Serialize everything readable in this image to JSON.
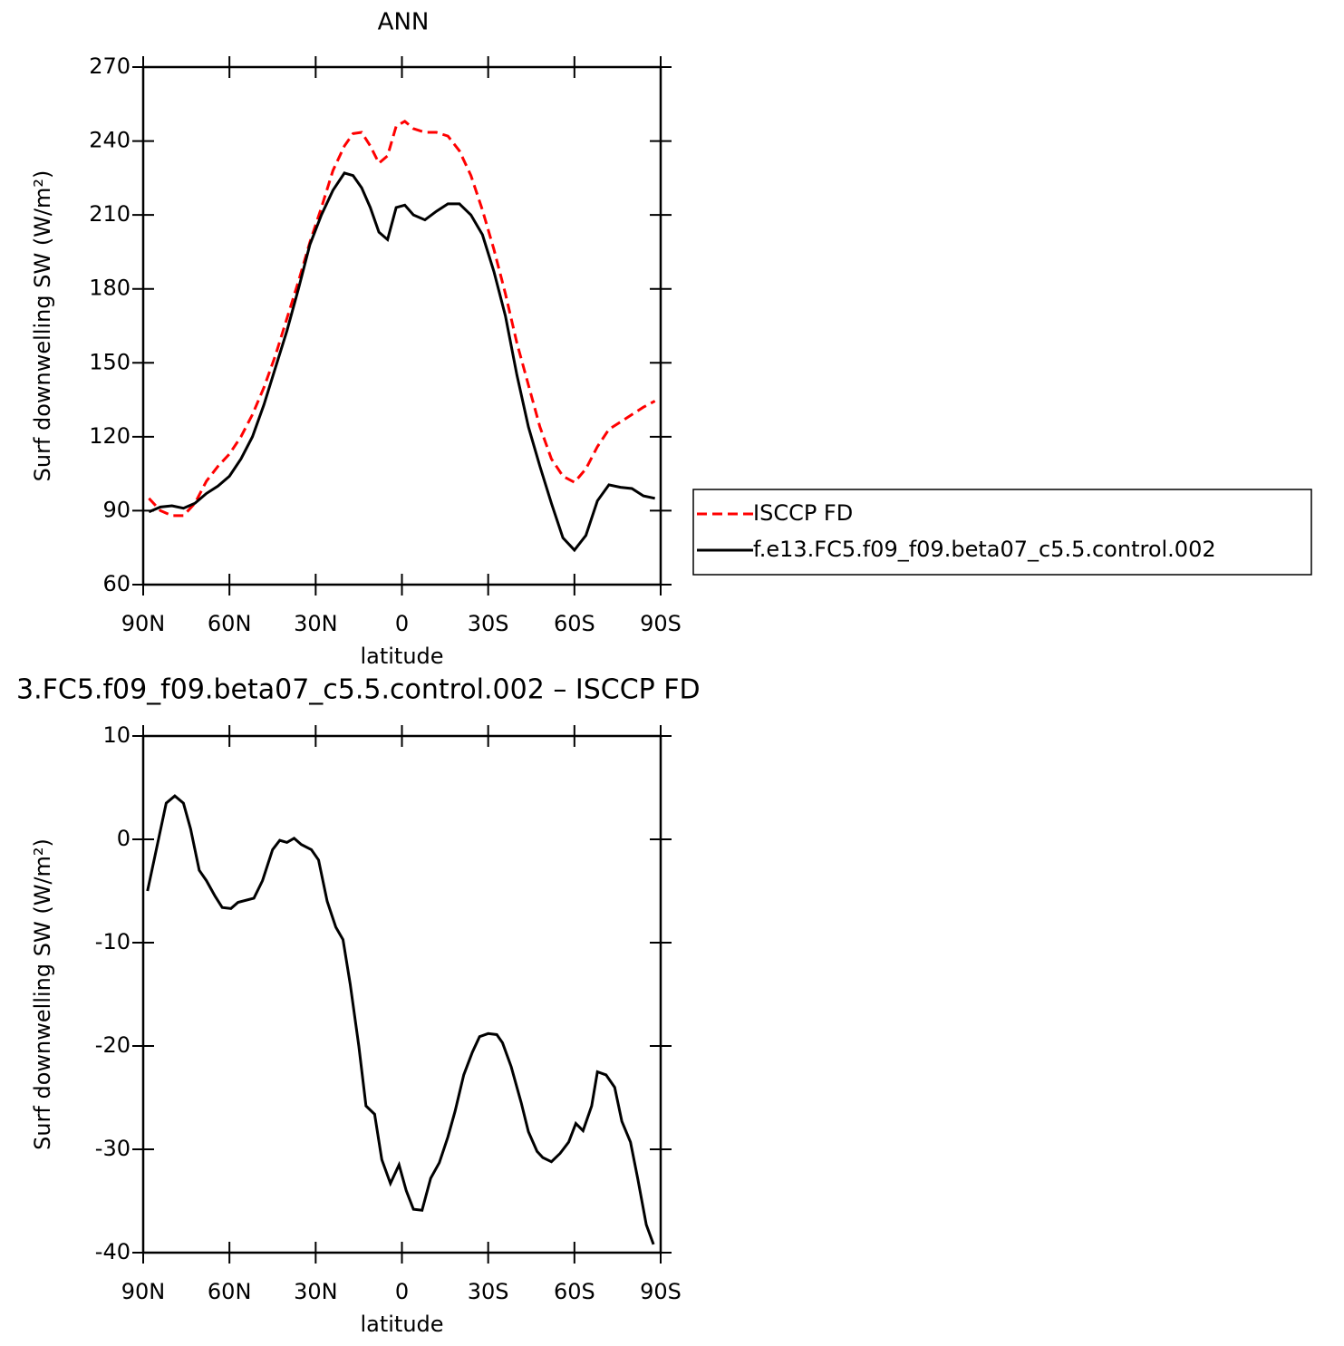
{
  "chart_data": [
    {
      "type": "line",
      "title": "ANN",
      "xlabel": "latitude",
      "ylabel": "Surf downwelling SW (W/m²)",
      "x": [
        88,
        84,
        80,
        76,
        72,
        68,
        64,
        60,
        56,
        52,
        48,
        44,
        40,
        36,
        32,
        28,
        24,
        20,
        17,
        14,
        11,
        8,
        5,
        2,
        -1,
        -4,
        -8,
        -12,
        -16,
        -20,
        -24,
        -28,
        -32,
        -36,
        -40,
        -44,
        -48,
        -52,
        -56,
        -60,
        -64,
        -68,
        -72,
        -76,
        -80,
        -84,
        -88
      ],
      "series": [
        {
          "name": "ISCCP FD",
          "color": "#ff0000",
          "linestyle": "dashed",
          "values": [
            95,
            90,
            88,
            88,
            93,
            102,
            108,
            113,
            120,
            129,
            140,
            153,
            168,
            183,
            199,
            213,
            228,
            238,
            243,
            243.5,
            238,
            231,
            234,
            246,
            248,
            245,
            243.5,
            243.5,
            242,
            236,
            226,
            212,
            196,
            178,
            158,
            141,
            124,
            111,
            104,
            101.5,
            107,
            116,
            123,
            126,
            129,
            132,
            134.5
          ]
        },
        {
          "name": "f.e13.FC5.f09_f09.beta07_c5.5.control.002",
          "color": "#000000",
          "linestyle": "solid",
          "values": [
            89.5,
            91.5,
            92,
            91,
            93,
            97,
            100,
            104,
            111,
            120,
            133,
            148,
            163,
            180,
            198,
            210,
            220,
            227,
            226,
            221,
            213,
            203,
            200,
            213,
            214,
            210,
            208,
            211.5,
            214.5,
            214.5,
            210,
            202,
            187,
            169,
            145,
            124,
            108,
            93,
            79,
            74,
            80,
            94,
            100.5,
            99.5,
            99,
            96,
            95
          ]
        }
      ],
      "xlim": [
        90,
        -90
      ],
      "xticks": [
        {
          "value": 90,
          "label": "90N"
        },
        {
          "value": 60,
          "label": "60N"
        },
        {
          "value": 30,
          "label": "30N"
        },
        0,
        {
          "value": -30,
          "label": "30S"
        },
        {
          "value": -60,
          "label": "60S"
        },
        {
          "value": -90,
          "label": "90S"
        }
      ],
      "ylim": [
        60,
        270
      ],
      "yticks": [
        60,
        90,
        120,
        150,
        180,
        210,
        240,
        270
      ],
      "legend": "right"
    },
    {
      "type": "line",
      "title": "3.FC5.f09_f09.beta07_c5.5.control.002 – ISCCP FD",
      "xlabel": "latitude",
      "ylabel": "Surf downwelling SW (W/m²)",
      "x": [
        88.5,
        82,
        79,
        76,
        73.5,
        70.5,
        68,
        65,
        62.5,
        59.5,
        57,
        51.5,
        48.5,
        45,
        42.5,
        40,
        37.5,
        35,
        31.5,
        29,
        26,
        23,
        20.5,
        18,
        15,
        12.5,
        9.5,
        7,
        4,
        1,
        -1.5,
        -4,
        -7,
        -10,
        -13,
        -16,
        -18.5,
        -21.5,
        -24.5,
        -27,
        -30,
        -33,
        -35,
        -38,
        -41.5,
        -44,
        -47,
        -49,
        -52,
        -55,
        -58,
        -60.5,
        -63,
        -66,
        -68,
        -71,
        -74,
        -76.5,
        -79.5,
        -82,
        -85,
        -87.5
      ],
      "series": [
        {
          "color": "#000000",
          "linestyle": "solid",
          "values": [
            -5,
            3.5,
            4.2,
            3.5,
            1,
            -3,
            -4,
            -5.5,
            -6.6,
            -6.7,
            -6.1,
            -5.7,
            -4,
            -1,
            -0.1,
            -0.3,
            0.1,
            -0.5,
            -1,
            -2,
            -6,
            -8.5,
            -9.7,
            -14,
            -20,
            -25.8,
            -26.6,
            -31,
            -33.3,
            -31.5,
            -34,
            -35.8,
            -35.9,
            -32.8,
            -31.3,
            -28.8,
            -26.3,
            -22.8,
            -20.6,
            -19.1,
            -18.8,
            -18.9,
            -19.7,
            -22,
            -25.5,
            -28.3,
            -30.2,
            -30.8,
            -31.2,
            -30.4,
            -29.3,
            -27.5,
            -28.2,
            -25.8,
            -22.5,
            -22.8,
            -24,
            -27.3,
            -29.3,
            -32.8,
            -37.3,
            -39.2
          ]
        }
      ],
      "xlim": [
        90,
        -90
      ],
      "xticks": [
        {
          "value": 90,
          "label": "90N"
        },
        {
          "value": 60,
          "label": "60N"
        },
        {
          "value": 30,
          "label": "30N"
        },
        0,
        {
          "value": -30,
          "label": "30S"
        },
        {
          "value": -60,
          "label": "60S"
        },
        {
          "value": -90,
          "label": "90S"
        }
      ],
      "ylim": [
        -40,
        10
      ],
      "yticks": [
        -40,
        -30,
        -20,
        -10,
        0,
        10
      ]
    }
  ]
}
